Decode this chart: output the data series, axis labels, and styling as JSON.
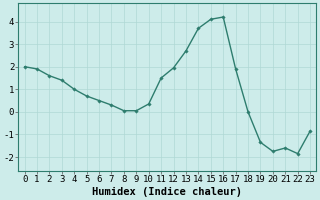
{
  "x": [
    0,
    1,
    2,
    3,
    4,
    5,
    6,
    7,
    8,
    9,
    10,
    11,
    12,
    13,
    14,
    15,
    16,
    17,
    18,
    19,
    20,
    21,
    22,
    23
  ],
  "y": [
    2.0,
    1.9,
    1.6,
    1.4,
    1.0,
    0.7,
    0.5,
    0.3,
    0.05,
    0.05,
    0.35,
    1.5,
    1.95,
    2.7,
    3.7,
    4.1,
    4.2,
    1.9,
    0.0,
    -1.35,
    -1.75,
    -1.6,
    -1.85,
    -0.85
  ],
  "line_color": "#2e7d6e",
  "marker": "D",
  "marker_size": 1.8,
  "background_color": "#cdecea",
  "grid_color": "#b0d8d5",
  "xlabel": "Humidex (Indice chaleur)",
  "xlim": [
    -0.5,
    23.5
  ],
  "ylim": [
    -2.6,
    4.8
  ],
  "yticks": [
    -2,
    -1,
    0,
    1,
    2,
    3,
    4
  ],
  "xticks": [
    0,
    1,
    2,
    3,
    4,
    5,
    6,
    7,
    8,
    9,
    10,
    11,
    12,
    13,
    14,
    15,
    16,
    17,
    18,
    19,
    20,
    21,
    22,
    23
  ],
  "tick_fontsize": 6.5,
  "xlabel_fontsize": 7.5,
  "linewidth": 1.0
}
